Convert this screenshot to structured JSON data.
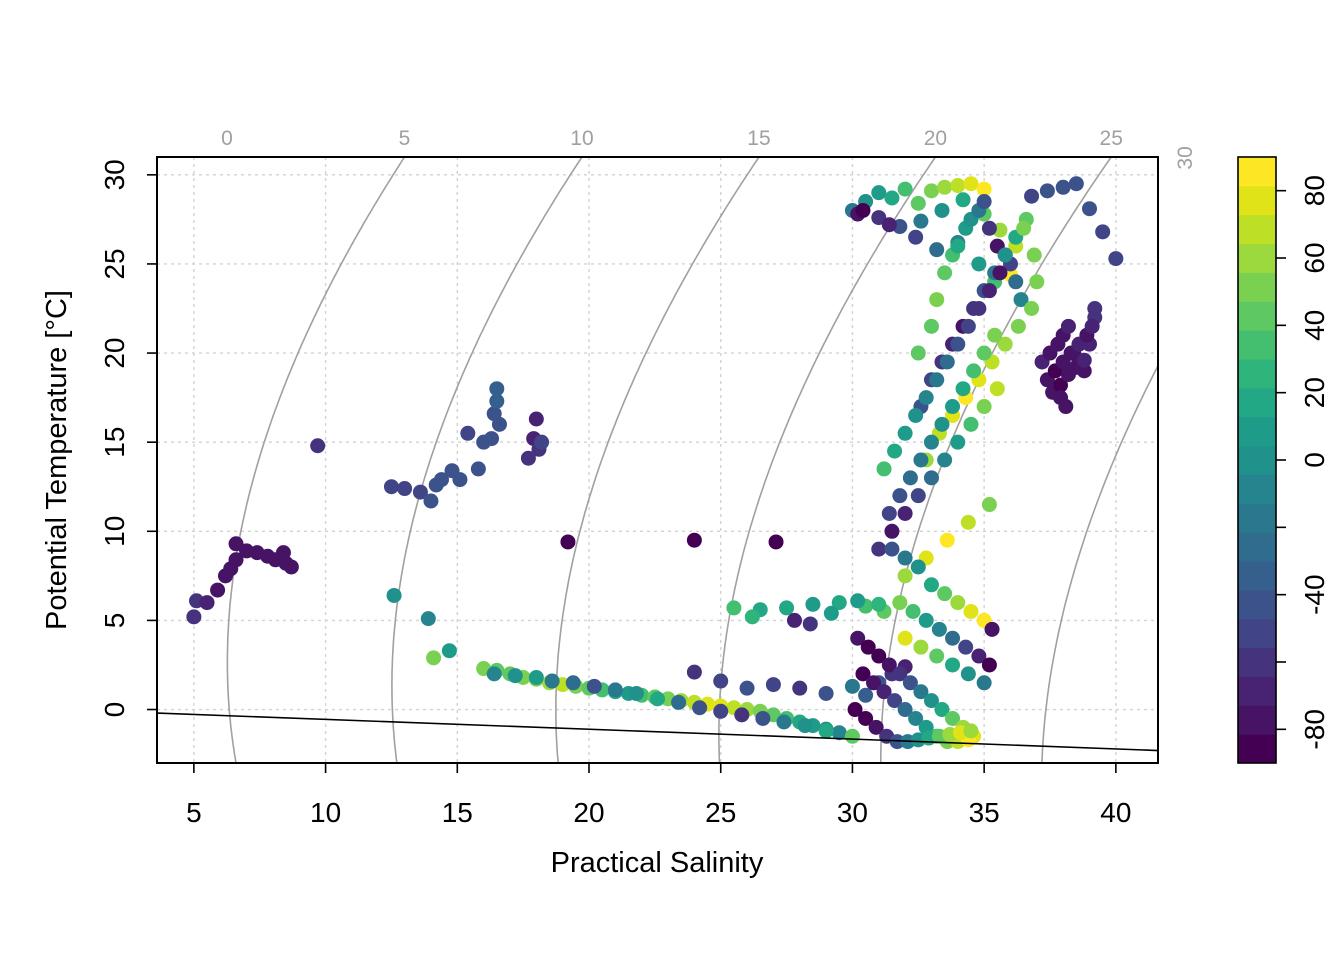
{
  "chart_data": {
    "type": "scatter",
    "xlabel": "Practical Salinity",
    "ylabel": "Potential Temperature [°C]",
    "xlim": [
      3.6,
      41.6
    ],
    "ylim": [
      -3.0,
      31.0
    ],
    "x_ticks": [
      5,
      10,
      15,
      20,
      25,
      30,
      35,
      40
    ],
    "y_ticks": [
      0,
      5,
      10,
      15,
      20,
      25,
      30
    ],
    "grid": true,
    "density_isopycnals": {
      "labels": [
        "0",
        "5",
        "10",
        "15",
        "20",
        "25",
        "30"
      ],
      "values": [
        0,
        5,
        10,
        15,
        20,
        25,
        30
      ],
      "color": "#a0a0a0"
    },
    "freezing_line": {
      "x": [
        3.6,
        41.6
      ],
      "y": [
        -0.2,
        -2.3
      ]
    },
    "colorbar": {
      "range": [
        -90,
        90
      ],
      "tick_values": [
        -80,
        -60,
        -40,
        -20,
        0,
        20,
        40,
        60,
        80
      ],
      "tick_labels": [
        "-80",
        "",
        "-40",
        "",
        "0",
        "20",
        "40",
        "60",
        "80"
      ],
      "palette": [
        "#440154",
        "#471365",
        "#482374",
        "#46337e",
        "#414487",
        "#3b528b",
        "#355f8d",
        "#2f6c8e",
        "#2a788e",
        "#25848e",
        "#21918c",
        "#1e9c89",
        "#22a884",
        "#2fb47c",
        "#44bf70",
        "#5ec962",
        "#7ad151",
        "#9bd93c",
        "#bddf26",
        "#dfe318",
        "#fde725"
      ]
    },
    "series": [
      {
        "x": [
          5.0,
          5.1,
          5.5,
          5.9,
          6.2,
          6.4,
          6.6,
          6.6,
          7.0,
          7.4,
          7.8,
          8.1,
          8.4,
          8.7,
          8.5
        ],
        "y": [
          5.2,
          6.1,
          6.0,
          6.7,
          7.5,
          7.9,
          8.4,
          9.3,
          8.9,
          8.8,
          8.6,
          8.4,
          8.8,
          8.0,
          8.2
        ],
        "c": [
          -60,
          -60,
          -70,
          -75,
          -75,
          -75,
          -80,
          -80,
          -80,
          -80,
          -80,
          -80,
          -80,
          -80,
          -80
        ]
      },
      {
        "x": [
          9.7,
          12.5,
          13.0,
          13.6,
          14.0,
          14.2,
          14.4,
          14.8,
          15.1,
          15.4,
          15.8,
          16.0,
          16.3,
          16.4,
          16.5,
          16.5,
          16.6,
          17.7,
          17.9,
          18.0,
          18.1,
          18.2
        ],
        "y": [
          14.8,
          12.5,
          12.4,
          12.2,
          11.7,
          12.6,
          12.9,
          13.4,
          12.9,
          15.5,
          13.5,
          15.0,
          15.2,
          16.6,
          17.3,
          18.0,
          16.0,
          14.1,
          15.2,
          16.3,
          14.6,
          15.0
        ],
        "c": [
          -60,
          -50,
          -50,
          -50,
          -40,
          -40,
          -45,
          -40,
          -40,
          -50,
          -45,
          -40,
          -45,
          -40,
          -35,
          -35,
          -40,
          -60,
          -65,
          -70,
          -60,
          -55
        ]
      },
      {
        "x": [
          12.6,
          13.9,
          14.1,
          14.7,
          19.2,
          24.0,
          27.1
        ],
        "y": [
          6.4,
          5.1,
          2.9,
          3.3,
          9.4,
          9.5,
          9.4
        ],
        "c": [
          0,
          -10,
          50,
          10,
          -85,
          -85,
          -85
        ]
      },
      {
        "x": [
          16.0,
          16.5,
          17.0,
          17.5,
          18.0,
          18.5,
          19.0,
          19.5,
          20.0,
          20.5,
          21.0,
          21.5,
          22.0,
          22.5,
          23.0,
          23.5,
          24.0,
          24.5,
          25.0,
          25.5,
          26.0,
          26.5,
          27.0,
          27.5,
          28.0,
          28.5,
          29.0,
          29.5
        ],
        "y": [
          2.3,
          2.2,
          2.0,
          1.8,
          1.7,
          1.5,
          1.4,
          1.3,
          1.2,
          1.1,
          1.0,
          0.9,
          0.8,
          0.7,
          0.6,
          0.5,
          0.4,
          0.3,
          0.2,
          0.1,
          0.0,
          -0.1,
          -0.3,
          -0.5,
          -0.7,
          -0.9,
          -1.1,
          -1.3
        ],
        "c": [
          50,
          45,
          40,
          50,
          55,
          60,
          65,
          55,
          45,
          30,
          20,
          10,
          30,
          40,
          50,
          60,
          70,
          75,
          80,
          70,
          60,
          50,
          40,
          30,
          20,
          10,
          0,
          -10
        ]
      },
      {
        "x": [
          16.4,
          17.2,
          18.0,
          18.6,
          19.4,
          20.2,
          21.0,
          21.8,
          22.6,
          23.4,
          24.2,
          25.0,
          25.8,
          26.6,
          27.4,
          28.2,
          29.0,
          30.0
        ],
        "y": [
          2.0,
          1.9,
          1.8,
          1.6,
          1.5,
          1.3,
          1.1,
          0.9,
          0.6,
          0.4,
          0.1,
          -0.1,
          -0.3,
          -0.5,
          -0.7,
          -0.9,
          -1.2,
          -1.5
        ],
        "c": [
          -10,
          0,
          10,
          -20,
          -30,
          -40,
          -20,
          0,
          20,
          -30,
          -40,
          -50,
          -60,
          -40,
          -20,
          0,
          20,
          40
        ]
      },
      {
        "x": [
          24.0,
          25.0,
          26.0,
          27.0,
          28.0,
          29.0,
          30.0,
          30.5,
          31.0,
          31.5,
          32.0,
          26.5,
          27.5,
          28.5,
          29.5,
          30.5,
          31.2,
          27.8,
          28.4,
          29.2,
          30.2,
          31.0,
          25.5,
          26.2
        ],
        "y": [
          2.1,
          1.6,
          1.2,
          1.4,
          1.2,
          0.9,
          1.3,
          0.8,
          1.5,
          2.0,
          2.4,
          5.6,
          5.7,
          5.9,
          6.0,
          5.8,
          5.5,
          5.0,
          4.8,
          5.4,
          6.1,
          5.9,
          5.7,
          5.2
        ],
        "c": [
          -60,
          -50,
          -40,
          -55,
          -60,
          -45,
          -20,
          -35,
          -40,
          -60,
          -70,
          20,
          15,
          10,
          20,
          30,
          40,
          -70,
          -60,
          5,
          10,
          25,
          30,
          25
        ]
      },
      {
        "x": [
          30.0,
          30.5,
          31.0,
          31.5,
          32.0,
          32.5,
          33.0,
          33.5,
          34.0,
          34.5,
          35.0,
          30.2,
          31.0,
          31.8,
          32.6,
          33.4,
          34.2,
          35.0,
          35.6,
          36.2,
          30.4,
          31.4,
          32.4,
          33.2,
          34.0,
          34.8,
          35.4,
          36.0,
          36.8,
          37.4,
          38.0,
          38.5,
          39.0,
          39.5,
          40.0
        ],
        "y": [
          28.0,
          28.5,
          29.0,
          28.7,
          29.2,
          28.4,
          29.1,
          29.3,
          29.4,
          29.5,
          29.2,
          27.8,
          27.6,
          27.1,
          27.4,
          28.0,
          28.6,
          27.8,
          26.9,
          26.0,
          28.0,
          27.2,
          26.5,
          25.8,
          26.2,
          25.0,
          24.0,
          24.4,
          28.8,
          29.1,
          29.3,
          29.5,
          28.1,
          26.8,
          25.3
        ],
        "c": [
          -20,
          0,
          10,
          20,
          30,
          40,
          50,
          60,
          70,
          80,
          85,
          -80,
          -60,
          -40,
          -20,
          0,
          20,
          40,
          60,
          70,
          -85,
          -70,
          -50,
          -30,
          -10,
          10,
          30,
          90,
          -50,
          -45,
          -40,
          -40,
          -45,
          -50,
          -55
        ]
      },
      {
        "x": [
          32.5,
          33.0,
          33.2,
          33.5,
          33.8,
          34.0,
          34.3,
          34.5,
          34.8,
          35.0,
          35.2,
          35.5,
          35.8,
          36.0,
          36.2,
          36.4,
          32.6,
          33.0,
          33.4,
          33.8,
          34.2,
          34.6,
          35.0,
          35.4,
          35.8,
          36.2,
          36.6,
          32.8,
          33.3,
          33.8,
          34.3,
          34.8,
          35.3,
          35.8,
          36.3,
          36.8,
          37.0,
          36.9,
          36.5
        ],
        "y": [
          20.0,
          21.5,
          23.0,
          24.5,
          25.5,
          26.0,
          27.0,
          27.5,
          28.0,
          28.5,
          27.0,
          26.0,
          25.5,
          25.0,
          24.0,
          23.0,
          17.0,
          18.5,
          19.5,
          20.5,
          21.5,
          22.5,
          23.5,
          24.5,
          25.5,
          26.5,
          27.5,
          14.0,
          15.5,
          16.5,
          17.5,
          18.5,
          19.5,
          20.5,
          21.5,
          22.5,
          24.0,
          25.5,
          27.0
        ],
        "c": [
          40,
          45,
          50,
          40,
          30,
          20,
          10,
          0,
          -20,
          -40,
          -60,
          -80,
          -70,
          -50,
          -30,
          -10,
          -40,
          -50,
          -60,
          -70,
          -80,
          -60,
          -40,
          -20,
          0,
          20,
          40,
          60,
          70,
          80,
          90,
          80,
          70,
          60,
          50,
          50,
          55,
          55,
          55
        ]
      },
      {
        "x": [
          31.2,
          31.6,
          32.0,
          32.4,
          32.8,
          33.2,
          33.6,
          34.0,
          34.4,
          34.8,
          35.2,
          35.6,
          31.4,
          31.8,
          32.2,
          32.6,
          33.0,
          33.4,
          33.8,
          34.2,
          34.6,
          35.0,
          35.4,
          31.0,
          31.5,
          32.0,
          32.5,
          33.0,
          33.5,
          34.0,
          34.5,
          35.0,
          35.5,
          32.0,
          32.8,
          33.6,
          34.4,
          35.2
        ],
        "y": [
          13.5,
          14.5,
          15.5,
          16.5,
          17.5,
          18.5,
          19.5,
          20.5,
          21.5,
          22.5,
          23.5,
          24.5,
          11.0,
          12.0,
          13.0,
          14.0,
          15.0,
          16.0,
          17.0,
          18.0,
          19.0,
          20.0,
          21.0,
          9.0,
          10.0,
          11.0,
          12.0,
          13.0,
          14.0,
          15.0,
          16.0,
          17.0,
          18.0,
          7.5,
          8.5,
          9.5,
          10.5,
          11.5
        ],
        "c": [
          30,
          20,
          10,
          0,
          -10,
          -20,
          -30,
          -40,
          -50,
          -60,
          -70,
          -80,
          -50,
          -40,
          -30,
          -20,
          -10,
          0,
          10,
          20,
          30,
          40,
          50,
          -60,
          -80,
          -70,
          -50,
          -30,
          -10,
          10,
          30,
          50,
          70,
          60,
          80,
          90,
          70,
          50
        ]
      },
      {
        "x": [
          30.2,
          30.6,
          31.0,
          31.4,
          31.8,
          32.2,
          32.6,
          33.0,
          33.4,
          33.8,
          34.2,
          34.6,
          30.4,
          30.8,
          31.2,
          31.6,
          32.0,
          32.4,
          32.8,
          33.2,
          33.6,
          34.0,
          34.4,
          30.1,
          30.5,
          30.9,
          31.3,
          31.7,
          32.1,
          32.5,
          32.9,
          33.3,
          33.7,
          34.1,
          34.5
        ],
        "y": [
          4.0,
          3.5,
          3.0,
          2.5,
          2.0,
          1.5,
          1.0,
          0.5,
          0.0,
          -0.5,
          -1.0,
          -1.5,
          2.0,
          1.5,
          1.0,
          0.5,
          0.0,
          -0.5,
          -1.0,
          -1.5,
          -1.8,
          -1.8,
          -1.7,
          0.0,
          -0.5,
          -1.0,
          -1.5,
          -1.8,
          -1.8,
          -1.7,
          -1.6,
          -1.5,
          -1.4,
          -1.3,
          -1.2
        ],
        "c": [
          -80,
          -85,
          -90,
          -80,
          -60,
          -40,
          -20,
          0,
          20,
          40,
          60,
          80,
          -85,
          -80,
          -70,
          -50,
          -30,
          -10,
          10,
          30,
          50,
          70,
          90,
          -90,
          -90,
          -80,
          -60,
          -40,
          -20,
          0,
          20,
          40,
          60,
          80,
          60
        ]
      },
      {
        "x": [
          31.5,
          32.0,
          32.5,
          33.0,
          33.5,
          34.0,
          34.5,
          35.0,
          35.3,
          31.8,
          32.3,
          32.8,
          33.3,
          33.8,
          34.3,
          34.8,
          35.2,
          32.0,
          32.6,
          33.2,
          33.8,
          34.4,
          35.0
        ],
        "y": [
          9.0,
          8.5,
          8.0,
          7.0,
          6.5,
          6.0,
          5.5,
          5.0,
          4.5,
          6.0,
          5.5,
          5.0,
          4.5,
          4.0,
          3.5,
          3.0,
          2.5,
          4.0,
          3.5,
          3.0,
          2.5,
          2.0,
          1.5
        ],
        "c": [
          -40,
          -20,
          0,
          20,
          40,
          60,
          80,
          90,
          -80,
          50,
          30,
          10,
          -10,
          -30,
          -50,
          -70,
          -85,
          80,
          60,
          40,
          20,
          0,
          -20
        ]
      },
      {
        "x": [
          37.2,
          37.5,
          37.8,
          38.0,
          38.2,
          38.4,
          38.6,
          38.8,
          39.0,
          39.2,
          37.4,
          37.7,
          38.0,
          38.3,
          38.6,
          38.9,
          39.1,
          37.6,
          37.9,
          38.2,
          38.5,
          38.8,
          37.9,
          38.1,
          39.2
        ],
        "y": [
          19.5,
          20.0,
          20.5,
          21.0,
          21.5,
          20.0,
          19.5,
          19.0,
          20.5,
          22.0,
          18.5,
          19.0,
          19.5,
          20.0,
          20.5,
          21.0,
          21.5,
          17.8,
          18.2,
          18.8,
          19.2,
          19.6,
          17.5,
          17.0,
          22.5
        ],
        "c": [
          -70,
          -75,
          -80,
          -75,
          -70,
          -75,
          -80,
          -75,
          -70,
          -60,
          -80,
          -85,
          -80,
          -75,
          -70,
          -75,
          -65,
          -80,
          -85,
          -80,
          -75,
          -70,
          -80,
          -75,
          -60
        ]
      }
    ]
  }
}
